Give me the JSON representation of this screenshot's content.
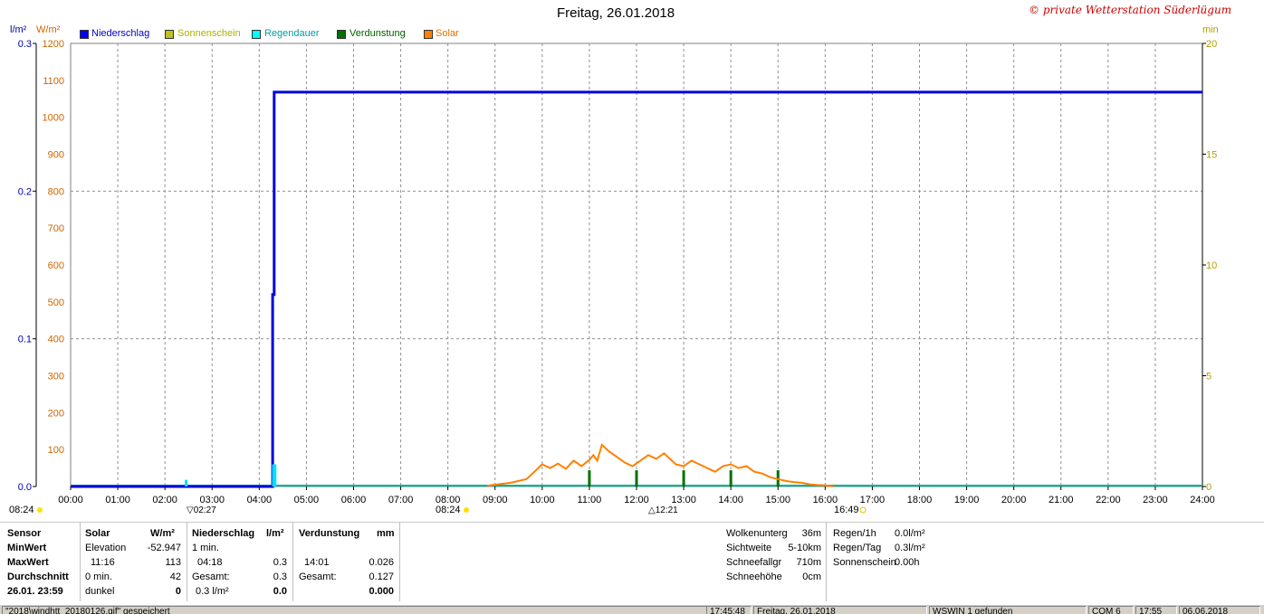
{
  "title": "Freitag, 26.01.2018",
  "watermark": "© private Wetterstation Süderlügum",
  "units": {
    "left1": "l/m²",
    "left2": "W/m²",
    "right": "min"
  },
  "legend": [
    {
      "label": "Niederschlag",
      "color": "#0000ff",
      "text_color": "#0000cc"
    },
    {
      "label": "Sonnenschein",
      "color": "#c0c020",
      "text_color": "#b0b000"
    },
    {
      "label": "Regendauer",
      "color": "#00ffff",
      "text_color": "#00a0a0"
    },
    {
      "label": "Verdunstung",
      "color": "#007000",
      "text_color": "#006000"
    },
    {
      "label": "Solar",
      "color": "#ff8000",
      "text_color": "#e07000"
    }
  ],
  "sun_markers": {
    "sunrise_left": "08:24",
    "sunrise": "08:24",
    "moon": "02:27",
    "noon": "12:21",
    "sunset": "16:49"
  },
  "chart_data": {
    "type": "line",
    "x_unit": "time of day",
    "xlim": [
      "00:00",
      "24:00"
    ],
    "x_ticks": [
      "00:00",
      "01:00",
      "02:00",
      "03:00",
      "04:00",
      "05:00",
      "06:00",
      "07:00",
      "08:00",
      "09:00",
      "10:00",
      "11:00",
      "12:00",
      "13:00",
      "14:00",
      "15:00",
      "16:00",
      "17:00",
      "18:00",
      "19:00",
      "20:00",
      "21:00",
      "22:00",
      "23:00",
      "24:00"
    ],
    "axes": {
      "precip": {
        "unit": "l/m²",
        "ylim": [
          0,
          0.3
        ],
        "ticks": [
          "0.0",
          "0.1",
          "0.2",
          "0.3"
        ]
      },
      "solar": {
        "unit": "W/m²",
        "ylim": [
          0,
          1200
        ],
        "ticks": [
          "100",
          "200",
          "300",
          "400",
          "500",
          "600",
          "700",
          "800",
          "900",
          "1000",
          "1100",
          "1200"
        ]
      },
      "minutes": {
        "unit": "min",
        "ylim": [
          0,
          20
        ],
        "ticks": [
          "0",
          "5",
          "10",
          "15",
          "20"
        ]
      }
    },
    "grid": true,
    "series": [
      {
        "name": "Niederschlag",
        "axis": "precip",
        "color": "#0000e0",
        "points": [
          [
            "00:00",
            0
          ],
          [
            "04:17",
            0
          ],
          [
            "04:17",
            0.13
          ],
          [
            "04:19",
            0.13
          ],
          [
            "04:19",
            0.267
          ],
          [
            "24:00",
            0.267
          ]
        ]
      },
      {
        "name": "Regendauer",
        "axis": "minutes",
        "color": "#00e0ff",
        "kind": "bars",
        "points": [
          [
            "02:27",
            0.3
          ],
          [
            "04:18",
            1
          ],
          [
            "04:20",
            1
          ]
        ]
      },
      {
        "name": "Verdunstung",
        "axis": "precip",
        "color": "#007000",
        "kind": "bars",
        "points": [
          [
            "11:00",
            0.011
          ],
          [
            "12:00",
            0.011
          ],
          [
            "13:00",
            0.011
          ],
          [
            "14:00",
            0.011
          ],
          [
            "15:00",
            0.011
          ]
        ]
      },
      {
        "name": "Solar",
        "axis": "solar",
        "color": "#ff8000",
        "points": [
          [
            "08:50",
            2
          ],
          [
            "09:00",
            5
          ],
          [
            "09:20",
            10
          ],
          [
            "09:40",
            20
          ],
          [
            "09:50",
            40
          ],
          [
            "10:00",
            60
          ],
          [
            "10:10",
            50
          ],
          [
            "10:20",
            62
          ],
          [
            "10:30",
            48
          ],
          [
            "10:40",
            70
          ],
          [
            "10:50",
            55
          ],
          [
            "11:00",
            72
          ],
          [
            "11:05",
            85
          ],
          [
            "11:10",
            70
          ],
          [
            "11:16",
            113
          ],
          [
            "11:25",
            95
          ],
          [
            "11:35",
            80
          ],
          [
            "11:45",
            65
          ],
          [
            "11:55",
            55
          ],
          [
            "12:05",
            70
          ],
          [
            "12:15",
            85
          ],
          [
            "12:25",
            75
          ],
          [
            "12:35",
            90
          ],
          [
            "12:40",
            80
          ],
          [
            "12:50",
            60
          ],
          [
            "13:00",
            55
          ],
          [
            "13:10",
            70
          ],
          [
            "13:20",
            60
          ],
          [
            "13:30",
            50
          ],
          [
            "13:40",
            40
          ],
          [
            "13:50",
            55
          ],
          [
            "14:00",
            60
          ],
          [
            "14:10",
            50
          ],
          [
            "14:20",
            55
          ],
          [
            "14:30",
            40
          ],
          [
            "14:40",
            35
          ],
          [
            "14:50",
            25
          ],
          [
            "15:00",
            20
          ],
          [
            "15:10",
            15
          ],
          [
            "15:20",
            12
          ],
          [
            "15:30",
            10
          ],
          [
            "15:40",
            6
          ],
          [
            "15:50",
            4
          ],
          [
            "16:00",
            3
          ],
          [
            "16:10",
            1
          ]
        ]
      }
    ]
  },
  "table": {
    "sensor": {
      "header": "Sensor",
      "rows": [
        "MinWert",
        "MaxWert",
        "Durchschnitt",
        "26.01. 23:59"
      ]
    },
    "solar": {
      "header": "Solar",
      "unit": "W/m²",
      "rows": [
        [
          "Elevation",
          "-52.947"
        ],
        [
          "11:16",
          "113"
        ],
        [
          "0 min.",
          "42"
        ],
        [
          "dunkel",
          "0"
        ]
      ]
    },
    "niederschlag": {
      "header": "Niederschlag",
      "unit": "l/m²",
      "rows": [
        [
          "1 min.",
          ""
        ],
        [
          "04:18",
          "0.3"
        ],
        [
          "Gesamt:",
          "0.3"
        ],
        [
          "0.3 l/m²",
          "0.0"
        ]
      ]
    },
    "verdunstung": {
      "header": "Verdunstung",
      "unit": "mm",
      "rows": [
        [
          "",
          ""
        ],
        [
          "14:01",
          "0.026"
        ],
        [
          "Gesamt:",
          "0.127"
        ],
        [
          "",
          "0.000"
        ]
      ]
    },
    "wolken": {
      "rows": [
        [
          "Wolkenunterg",
          "36m"
        ],
        [
          "Sichtweite",
          "5-10km"
        ],
        [
          "Schneefallgr",
          "710m"
        ],
        [
          "Schneehöhe",
          "0cm"
        ]
      ]
    },
    "regen": {
      "rows": [
        [
          "Regen/1h",
          "0.0l/m²"
        ],
        [
          "Regen/Tag",
          "0.3l/m²"
        ],
        [
          "Sonnenschein",
          "0.00h"
        ]
      ]
    }
  },
  "status_bar": {
    "file": "\"2018\\windhtt_20180126.gif\" gespeichert",
    "time": "17:45:48",
    "date": "Freitag, 26.01.2018",
    "found": "WSWIN 1 gefunden",
    "com": "COM 6",
    "clock": "17:55",
    "today": "06.06.2018"
  }
}
